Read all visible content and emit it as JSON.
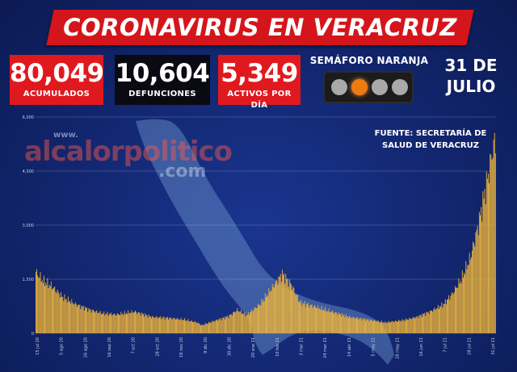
{
  "header": {
    "title": "CORONAVIRUS EN VERACRUZ"
  },
  "stats": [
    {
      "value": "80,049",
      "label": "ACUMULADOS",
      "color": "#e0191f"
    },
    {
      "value": "10,604",
      "label": "DEFUNCIONES",
      "color": "#0a0a12"
    },
    {
      "value": "5,349",
      "label": "ACTIVOS POR DÍA",
      "color": "#e0191f"
    }
  ],
  "semaforo": {
    "label": "SEMÁFORO NARANJA",
    "lights": [
      "off",
      "on",
      "off",
      "off"
    ],
    "active_color": "#f07a12"
  },
  "date": {
    "line1": "31 DE",
    "line2": "JULIO"
  },
  "source": {
    "line1": "FUENTE: SECRETARÍA DE",
    "line2": "SALUD DE VERACRUZ"
  },
  "watermark": {
    "www": "www.",
    "main": "alcalorpolitico",
    "com": ".com"
  },
  "chart_data": {
    "type": "bar",
    "title": "",
    "xlabel": "",
    "ylabel": "",
    "ylim": [
      0,
      6000
    ],
    "yticks": [
      "0",
      "1,500",
      "3,000",
      "4,500",
      "6,000"
    ],
    "grid": true,
    "bar_color": "#f0b63a",
    "x_tick_labels": [
      "15 jul 20",
      "5 ago 20",
      "26 ago 20",
      "16 sep 20",
      "7 oct 20",
      "28 oct 20",
      "18 nov 20",
      "9 dic 20",
      "30 dic 20",
      "20 ene 21",
      "10 feb 21",
      "3 mar 21",
      "24 mar 21",
      "14 abr 21",
      "5 may 21",
      "26 may 21",
      "16 jun 21",
      "7 jul 21",
      "28 jul 21",
      "31 jul 21"
    ],
    "anchors": [
      [
        0,
        1700
      ],
      [
        8,
        1450
      ],
      [
        18,
        1300
      ],
      [
        30,
        1000
      ],
      [
        45,
        800
      ],
      [
        60,
        650
      ],
      [
        75,
        550
      ],
      [
        90,
        520
      ],
      [
        110,
        600
      ],
      [
        130,
        450
      ],
      [
        150,
        420
      ],
      [
        165,
        380
      ],
      [
        180,
        300
      ],
      [
        185,
        220
      ],
      [
        200,
        350
      ],
      [
        215,
        470
      ],
      [
        225,
        650
      ],
      [
        235,
        500
      ],
      [
        250,
        800
      ],
      [
        265,
        1300
      ],
      [
        275,
        1650
      ],
      [
        285,
        1350
      ],
      [
        295,
        850
      ],
      [
        310,
        750
      ],
      [
        330,
        600
      ],
      [
        350,
        450
      ],
      [
        370,
        380
      ],
      [
        390,
        300
      ],
      [
        410,
        360
      ],
      [
        425,
        450
      ],
      [
        440,
        600
      ],
      [
        455,
        800
      ],
      [
        465,
        1100
      ],
      [
        475,
        1500
      ],
      [
        485,
        2100
      ],
      [
        492,
        2800
      ],
      [
        498,
        3500
      ],
      [
        505,
        4400
      ],
      [
        510,
        5100
      ],
      [
        513,
        5349
      ]
    ],
    "num_bars": 514
  }
}
